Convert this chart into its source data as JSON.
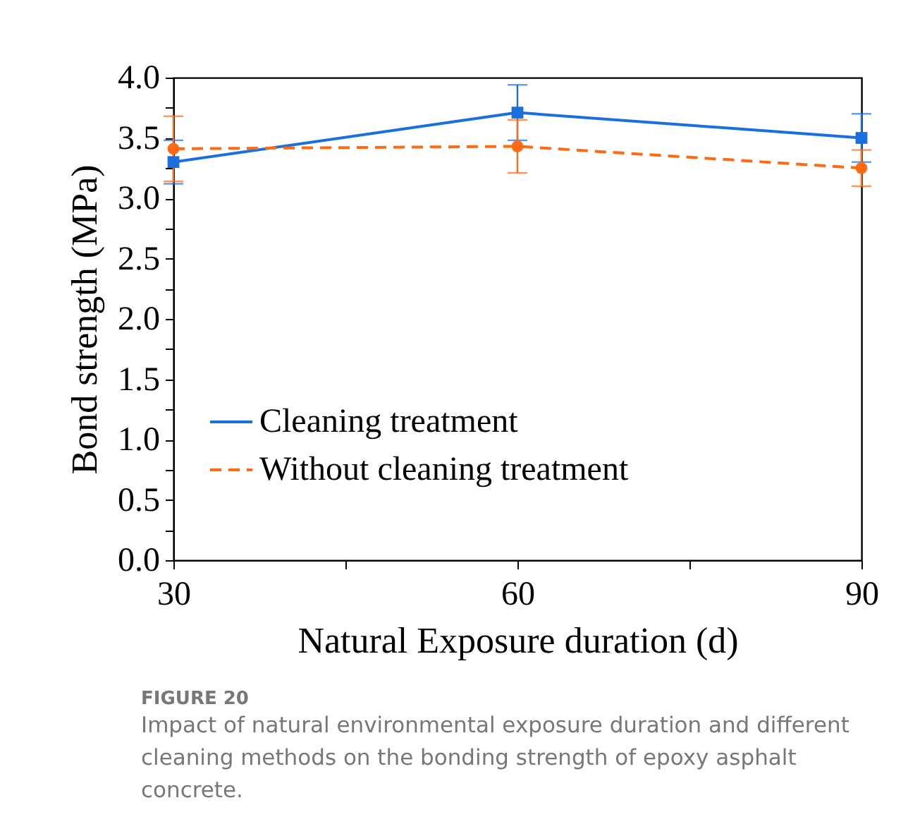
{
  "chart_data": {
    "type": "line",
    "xlabel": "Natural Exposure duration (d)",
    "ylabel": "Bond strength (MPa)",
    "x": [
      30,
      60,
      90
    ],
    "xlim": [
      30,
      90
    ],
    "xticks": [
      30,
      {
        "value": 45,
        "label": null
      },
      60,
      {
        "value": 75,
        "label": null
      },
      90
    ],
    "ylim": [
      0,
      4
    ],
    "yticks": [
      {
        "value": 0,
        "label": "0.0"
      },
      {
        "value": 0.25,
        "label": null
      },
      0.5,
      {
        "value": 0.75,
        "label": null
      },
      {
        "value": 1,
        "label": "1.0"
      },
      {
        "value": 1.25,
        "label": null
      },
      1.5,
      {
        "value": 1.75,
        "label": null
      },
      {
        "value": 2,
        "label": "2.0"
      },
      {
        "value": 2.25,
        "label": null
      },
      2.5,
      {
        "value": 2.75,
        "label": null
      },
      {
        "value": 3,
        "label": "3.0"
      },
      {
        "value": 3.25,
        "label": null
      },
      3.5,
      {
        "value": 3.75,
        "label": null
      },
      {
        "value": 4,
        "label": "4.0"
      }
    ],
    "series": [
      {
        "name": "Cleaning treatment",
        "color": "#1a6fdf",
        "values": [
          3.3,
          3.71,
          3.5
        ],
        "errors": [
          0.18,
          0.23,
          0.2
        ],
        "marker": "square",
        "line_style": "solid"
      },
      {
        "name": "Without cleaning treatment",
        "color": "#ff6a13",
        "values": [
          3.41,
          3.43,
          3.25
        ],
        "errors": [
          0.27,
          0.22,
          0.15
        ],
        "marker": "circle",
        "line_style": "dashed"
      }
    ],
    "legend": "left",
    "grid": false,
    "annotations": [
      "FIGURE 20",
      "Impact of natural environmental exposure duration and different cleaning methods on the bonding strength of epoxy asphalt concrete."
    ]
  }
}
